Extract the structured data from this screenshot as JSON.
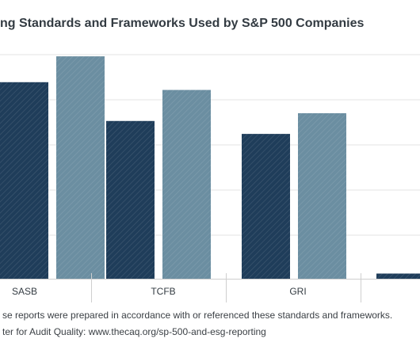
{
  "title": "ng Standards and Frameworks Used by S&P 500 Companies",
  "note": "se reports were prepared in accordance with or referenced these standards and frameworks.",
  "source": "ter for Audit Quality: www.thecaq.org/sp-500-and-esg-reporting",
  "colors": {
    "dark": "#1f3d5a",
    "light": "#6b8ea1",
    "grid": "#e3e3e3",
    "axis": "#cfcfcf",
    "text": "#333b42"
  },
  "chart_data": {
    "type": "bar",
    "title": "ng Standards and Frameworks Used by S&P 500 Companies",
    "categories": [
      "SASB",
      "TCFB",
      "GRI",
      ""
    ],
    "series": [
      {
        "values": [
          76,
          61,
          56,
          2
        ]
      },
      {
        "values": [
          86,
          73,
          64,
          null
        ]
      }
    ],
    "ylim": [
      0,
      94
    ],
    "grid": true,
    "legend": "none"
  }
}
